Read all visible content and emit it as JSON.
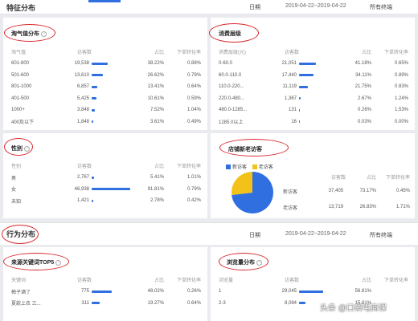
{
  "header": {
    "title": "特征分布",
    "date_label": "日期",
    "date_range": "2019-04-22~2019-04-22",
    "terminal": "所有终端"
  },
  "sections": {
    "naughty": {
      "title": "淘气值分布",
      "headers": [
        "淘气值",
        "访客数",
        "占比",
        "下单转化率"
      ],
      "rows": [
        {
          "label": "601-800",
          "visitors": "19,538",
          "pct": "38.22%",
          "share": 0.3822,
          "conv": "0.88%"
        },
        {
          "label": "501-600",
          "visitors": "13,610",
          "pct": "26.62%",
          "share": 0.2662,
          "conv": "0.79%"
        },
        {
          "label": "801-1000",
          "visitors": "6,857",
          "pct": "13.41%",
          "share": 0.1341,
          "conv": "0.64%"
        },
        {
          "label": "401-500",
          "visitors": "5,425",
          "pct": "10.61%",
          "share": 0.1061,
          "conv": "0.59%"
        },
        {
          "label": "1000+",
          "visitors": "3,848",
          "pct": "7.52%",
          "share": 0.0752,
          "conv": "1.04%"
        },
        {
          "label": "400及以下",
          "visitors": "1,848",
          "pct": "3.61%",
          "share": 0.0361,
          "conv": "0.49%"
        }
      ]
    },
    "consumption": {
      "title": "消费层级",
      "headers": [
        "消费层级(元)",
        "访客数",
        "占比",
        "下单转化率"
      ],
      "rows": [
        {
          "label": "0-60.0",
          "visitors": "21,051",
          "pct": "41.18%",
          "share": 0.4118,
          "conv": "0.65%"
        },
        {
          "label": "60.0-110.0",
          "visitors": "17,440",
          "pct": "34.11%",
          "share": 0.3411,
          "conv": "0.89%"
        },
        {
          "label": "110.0-220...",
          "visitors": "11,119",
          "pct": "21.75%",
          "share": 0.2175,
          "conv": "0.83%"
        },
        {
          "label": "220.0-480...",
          "visitors": "1,367",
          "pct": "2.67%",
          "share": 0.0267,
          "conv": "1.24%"
        },
        {
          "label": "480.0-1285...",
          "visitors": "131",
          "pct": "0.26%",
          "share": 0.0026,
          "conv": "1.53%"
        },
        {
          "label": "1285.0以上",
          "visitors": "16",
          "pct": "0.03%",
          "share": 0.0003,
          "conv": "0.00%"
        }
      ]
    },
    "gender": {
      "title": "性别",
      "headers": [
        "性别",
        "访客数",
        "占比",
        "下单转化率"
      ],
      "rows": [
        {
          "label": "男",
          "visitors": "2,767",
          "pct": "5.41%",
          "share": 0.0541,
          "conv": "1.01%"
        },
        {
          "label": "女",
          "visitors": "46,938",
          "pct": "91.81%",
          "share": 0.9181,
          "conv": "0.79%"
        },
        {
          "label": "未知",
          "visitors": "1,421",
          "pct": "2.78%",
          "share": 0.0278,
          "conv": "0.42%"
        }
      ]
    },
    "new_old": {
      "title": "店铺新老访客",
      "legend_new": "新访客",
      "legend_old": "老访客",
      "headers": [
        "",
        "访客数",
        "占比",
        "下单转化率"
      ],
      "rows": [
        {
          "label": "新访客",
          "visitors": "37,405",
          "pct": "73.17%",
          "conv": "0.45%"
        },
        {
          "label": "老访客",
          "visitors": "13,719",
          "pct": "26.83%",
          "conv": "1.71%"
        }
      ],
      "colors": {
        "new": "#2f6fe0",
        "old": "#f2c21a"
      }
    },
    "behavior": {
      "title": "行为分布",
      "date_label": "日期",
      "date_range": "2019-04-22~2019-04-22",
      "terminal": "所有终端"
    },
    "keywords": {
      "title": "来源关键词TOP5",
      "headers": [
        "关键词",
        "访客数",
        "占比",
        "下单转化率"
      ],
      "rows": [
        {
          "label": "梅子酒了",
          "visitors": "775",
          "pct": "48.02%",
          "share": 0.4802,
          "conv": "0.26%"
        },
        {
          "label": "夏款上衣 三...",
          "visitors": "311",
          "pct": "19.27%",
          "share": 0.1927,
          "conv": "0.64%"
        }
      ]
    },
    "browse": {
      "title": "浏览量分布",
      "headers": [
        "浏览量",
        "访客数",
        "占比",
        "下单转化率"
      ],
      "rows": [
        {
          "label": "1",
          "visitors": "29,045",
          "pct": "56.81%",
          "share": 0.5681,
          "conv": ""
        },
        {
          "label": "2-3",
          "visitors": "8,084",
          "pct": "15.81%",
          "share": 0.1581,
          "conv": ""
        }
      ]
    }
  },
  "watermark": "头条 @口袋电商课",
  "accent_color": "#2f6fe0",
  "annotation_color": "#d7262b"
}
